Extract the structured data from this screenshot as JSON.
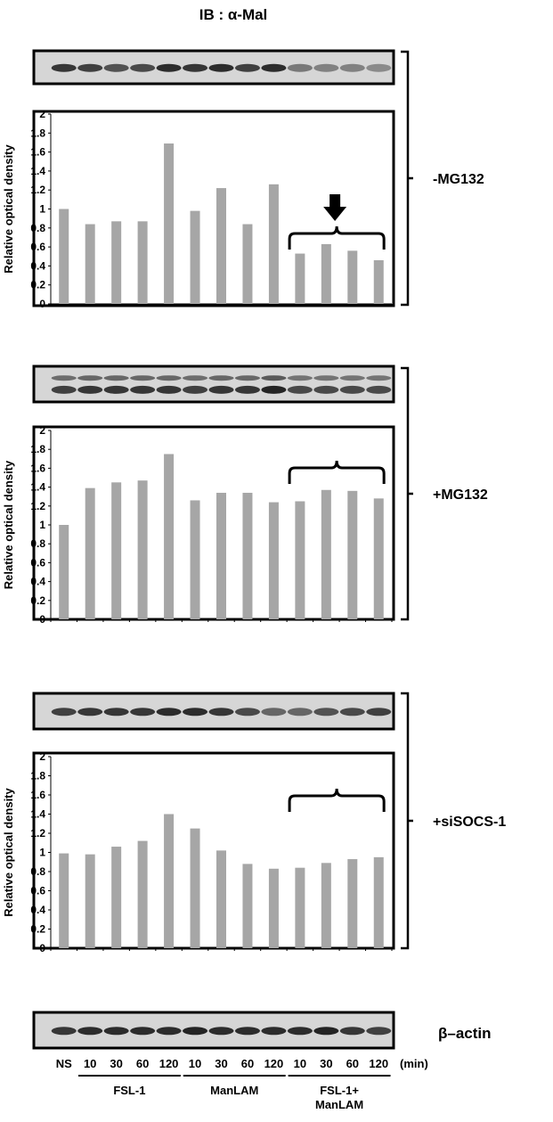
{
  "figure_title": "IB : α-Mal",
  "beta_actin_label": "β–actin",
  "x_axis": {
    "ns_label": "NS",
    "time_labels": [
      "10",
      "30",
      "60",
      "120",
      "10",
      "30",
      "60",
      "120",
      "10",
      "30",
      "60",
      "120"
    ],
    "unit_label": "(min)",
    "groups": [
      {
        "label_lines": [
          "FSL-1"
        ]
      },
      {
        "label_lines": [
          "ManLAM"
        ]
      },
      {
        "label_lines": [
          "FSL-1+",
          "ManLAM"
        ]
      }
    ]
  },
  "colors": {
    "bar": "#a6a6a6",
    "axis": "#000000",
    "blot_bg": "#d6d6d6",
    "band": "#1a1a1a"
  },
  "chart_data": [
    {
      "type": "bar",
      "condition": "-MG132",
      "ylabel": "Relative optical density",
      "ylim": [
        0,
        2
      ],
      "yticks": [
        "0",
        "0.2",
        "0.4",
        "0.6",
        "0.8",
        "1",
        "1.2",
        "1.4",
        "1.6",
        "1.8",
        "2"
      ],
      "values": [
        1.0,
        0.84,
        0.87,
        0.87,
        1.69,
        0.98,
        1.22,
        0.84,
        1.26,
        0.53,
        0.63,
        0.56,
        0.46
      ],
      "band_intensity": [
        0.85,
        0.8,
        0.7,
        0.75,
        0.9,
        0.85,
        0.9,
        0.8,
        0.9,
        0.5,
        0.45,
        0.45,
        0.4
      ],
      "brace_over_last": 4,
      "arrow": true
    },
    {
      "type": "bar",
      "condition": "+MG132",
      "ylabel": "Relative optical density",
      "ylim": [
        0,
        2
      ],
      "yticks": [
        "0",
        "0.2",
        "0.4",
        "0.6",
        "0.8",
        "1",
        "1.2",
        "1.4",
        "1.6",
        "1.8",
        "2"
      ],
      "values": [
        1.0,
        1.39,
        1.45,
        1.47,
        1.75,
        1.26,
        1.34,
        1.34,
        1.24,
        1.25,
        1.37,
        1.36,
        1.28
      ],
      "band_intensity": [
        0.8,
        0.85,
        0.85,
        0.85,
        0.85,
        0.8,
        0.85,
        0.85,
        0.95,
        0.75,
        0.75,
        0.75,
        0.75
      ],
      "double_band": true,
      "brace_over_last": 4,
      "arrow": false
    },
    {
      "type": "bar",
      "condition": "+siSOCS-1",
      "ylabel": "Relative optical density",
      "ylim": [
        0,
        2
      ],
      "yticks": [
        "0",
        "0.2",
        "0.4",
        "0.6",
        "0.8",
        "1",
        "1.2",
        "1.4",
        "1.6",
        "1.8",
        "2"
      ],
      "values": [
        0.99,
        0.98,
        1.06,
        1.12,
        1.4,
        1.25,
        1.02,
        0.88,
        0.83,
        0.84,
        0.89,
        0.93,
        0.95
      ],
      "band_intensity": [
        0.8,
        0.85,
        0.85,
        0.85,
        0.9,
        0.9,
        0.85,
        0.75,
        0.6,
        0.6,
        0.7,
        0.75,
        0.8
      ],
      "brace_over_last": 4,
      "arrow": false
    }
  ],
  "beta_actin_band_intensity": [
    0.85,
    0.9,
    0.9,
    0.9,
    0.9,
    0.95,
    0.9,
    0.9,
    0.9,
    0.9,
    0.95,
    0.85,
    0.8
  ]
}
